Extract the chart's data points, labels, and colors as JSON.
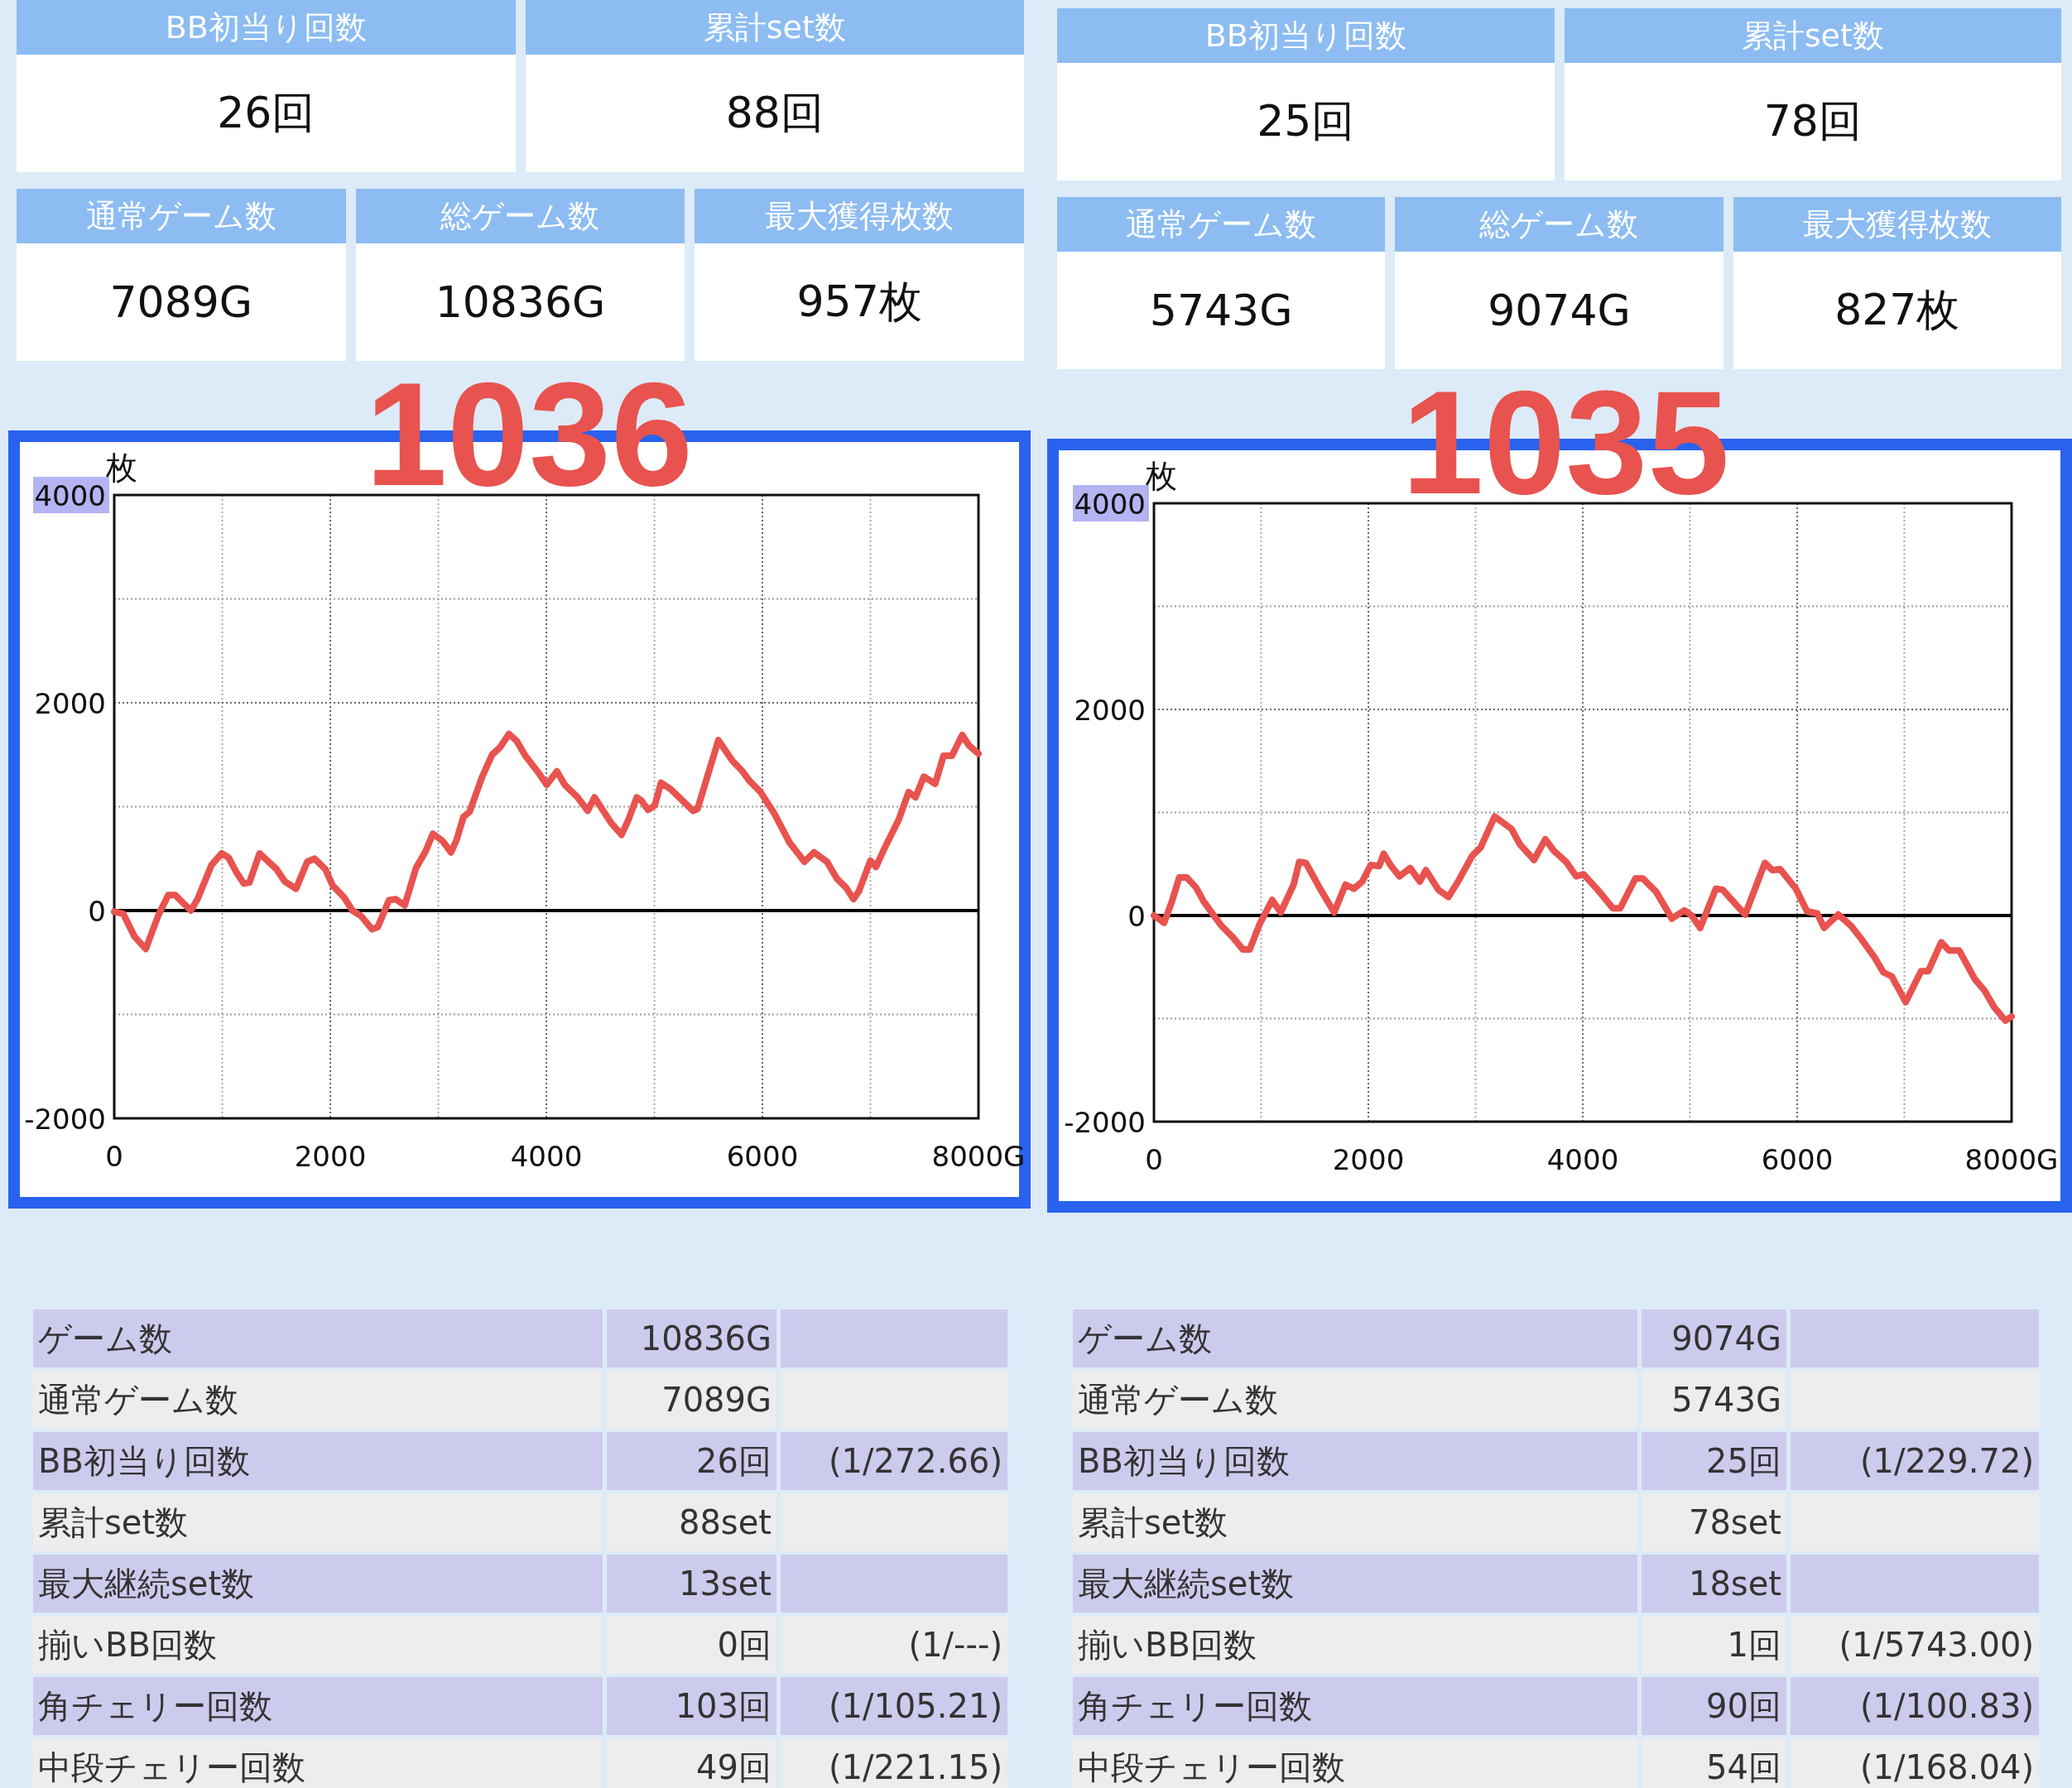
{
  "chart_data": [
    {
      "type": "other",
      "categories": [
        "BB初当り回数",
        "累計set数",
        "通常ゲーム数",
        "総ゲーム数",
        "最大獲得枚数"
      ],
      "value_labels": [
        "26回",
        "88回",
        "7089G",
        "10836G",
        "957枚"
      ]
    },
    {
      "type": "other",
      "categories": [
        "BB初当り回数",
        "累計set数",
        "通常ゲーム数",
        "総ゲーム数",
        "最大獲得枚数"
      ],
      "value_labels": [
        "25回",
        "78回",
        "5743G",
        "9074G",
        "827枚"
      ]
    },
    {
      "type": "line",
      "title": "1036",
      "ylabel": "枚",
      "color": "#e8534f",
      "grid": true,
      "xlim": [
        0,
        8000
      ],
      "ylim": [
        -2000,
        4000
      ],
      "xticks": [
        0,
        {
          "value": 1000,
          "label": null
        },
        2000,
        {
          "value": 3000,
          "label": null
        },
        4000,
        {
          "value": 5000,
          "label": null
        },
        6000,
        {
          "value": 7000,
          "label": null
        },
        {
          "value": 8000,
          "label": "8000G"
        }
      ],
      "yticks": [
        -2000,
        {
          "value": -1000,
          "label": null
        },
        0,
        {
          "value": 1000,
          "label": null
        },
        2000,
        {
          "value": 3000,
          "label": null
        },
        4000
      ],
      "ref_lines": [
        {
          "axis": "y",
          "value": 0,
          "color": "#000000"
        }
      ],
      "x": [
        0,
        83,
        188,
        292,
        406,
        500,
        563,
        709,
        771,
        901,
        995,
        1058,
        1136,
        1199,
        1251,
        1345,
        1501,
        1579,
        1683,
        1787,
        1855,
        1954,
        2022,
        2126,
        2205,
        2283,
        2387,
        2439,
        2543,
        2606,
        2689,
        2794,
        2882,
        2950,
        3039,
        3117,
        3169,
        3232,
        3289,
        3403,
        3497,
        3570,
        3654,
        3727,
        3805,
        3925,
        4003,
        4097,
        4170,
        4289,
        4383,
        4446,
        4602,
        4696,
        4759,
        4837,
        4879,
        4941,
        5003,
        5061,
        5149,
        5358,
        5400,
        5592,
        5723,
        5816,
        5879,
        5983,
        6113,
        6254,
        6389,
        6478,
        6598,
        6687,
        6775,
        6843,
        6895,
        6999,
        7051,
        7130,
        7260,
        7354,
        7417,
        7495,
        7599,
        7677,
        7755,
        7849,
        7912,
        8000
      ],
      "values": [
        -10,
        -30,
        -250,
        -370,
        -50,
        150,
        150,
        0,
        110,
        440,
        550,
        510,
        360,
        260,
        270,
        550,
        400,
        280,
        210,
        470,
        500,
        400,
        240,
        130,
        0,
        -50,
        -180,
        -160,
        100,
        110,
        50,
        410,
        570,
        740,
        670,
        560,
        680,
        900,
        950,
        1280,
        1500,
        1570,
        1700,
        1630,
        1490,
        1330,
        1210,
        1340,
        1210,
        1090,
        960,
        1090,
        840,
        730,
        870,
        1090,
        1060,
        970,
        1010,
        1230,
        1170,
        960,
        980,
        1640,
        1440,
        1340,
        1250,
        1140,
        930,
        650,
        470,
        560,
        470,
        310,
        220,
        110,
        190,
        480,
        420,
        600,
        870,
        1140,
        1090,
        1290,
        1220,
        1490,
        1490,
        1690,
        1590,
        1510
      ]
    },
    {
      "type": "line",
      "title": "1035",
      "ylabel": "枚",
      "color": "#e8534f",
      "grid": true,
      "xlim": [
        0,
        8000
      ],
      "ylim": [
        -2000,
        4000
      ],
      "xticks": [
        0,
        {
          "value": 1000,
          "label": null
        },
        2000,
        {
          "value": 3000,
          "label": null
        },
        4000,
        {
          "value": 5000,
          "label": null
        },
        6000,
        {
          "value": 7000,
          "label": null
        },
        {
          "value": 8000,
          "label": "8000G"
        }
      ],
      "yticks": [
        -2000,
        {
          "value": -1000,
          "label": null
        },
        0,
        {
          "value": 1000,
          "label": null
        },
        2000,
        {
          "value": 3000,
          "label": null
        },
        4000
      ],
      "ref_lines": [
        {
          "axis": "y",
          "value": 0,
          "color": "#000000"
        }
      ],
      "x": [
        0,
        95,
        168,
        236,
        305,
        394,
        462,
        552,
        630,
        735,
        830,
        893,
        987,
        1103,
        1182,
        1303,
        1355,
        1418,
        1550,
        1681,
        1786,
        1865,
        1944,
        2022,
        2101,
        2143,
        2206,
        2290,
        2390,
        2480,
        2537,
        2653,
        2747,
        2837,
        2968,
        3047,
        3178,
        3335,
        3414,
        3545,
        3651,
        3729,
        3845,
        3940,
        4008,
        4139,
        4281,
        4349,
        4491,
        4559,
        4685,
        4832,
        4948,
        5016,
        5095,
        5242,
        5305,
        5452,
        5515,
        5699,
        5768,
        5841,
        5988,
        6093,
        6188,
        6251,
        6383,
        6503,
        6593,
        6724,
        6803,
        6882,
        7013,
        7155,
        7223,
        7344,
        7418,
        7512,
        7659,
        7749,
        7838,
        7943,
        8000
      ],
      "values": [
        0,
        -70,
        140,
        370,
        370,
        270,
        140,
        10,
        -100,
        -210,
        -330,
        -330,
        -80,
        150,
        30,
        300,
        520,
        510,
        260,
        30,
        300,
        260,
        330,
        490,
        480,
        600,
        490,
        380,
        460,
        330,
        440,
        250,
        180,
        330,
        580,
        660,
        960,
        840,
        690,
        540,
        740,
        630,
        520,
        380,
        400,
        250,
        70,
        70,
        360,
        360,
        230,
        -30,
        50,
        0,
        -120,
        260,
        250,
        80,
        10,
        510,
        440,
        450,
        260,
        40,
        20,
        -120,
        10,
        -100,
        -220,
        -410,
        -550,
        -590,
        -840,
        -540,
        -540,
        -260,
        -340,
        -340,
        -620,
        -730,
        -890,
        -1020,
        -980
      ]
    },
    {
      "type": "other",
      "y_categories": [
        "ゲーム数",
        "通常ゲーム数",
        "BB初当り回数",
        "累計set数",
        "最大継続set数",
        "揃いBB回数",
        "角チェリー回数",
        "中段チェリー回数"
      ],
      "cell_labels": [
        [
          "10836G",
          null
        ],
        [
          "7089G",
          null
        ],
        [
          "26回",
          "(1/272.66)"
        ],
        [
          "88set",
          null
        ],
        [
          "13set",
          null
        ],
        [
          "0回",
          "(1/---)"
        ],
        [
          "103回",
          "(1/105.21)"
        ],
        [
          "49回",
          "(1/221.15)"
        ]
      ]
    },
    {
      "type": "other",
      "y_categories": [
        "ゲーム数",
        "通常ゲーム数",
        "BB初当り回数",
        "累計set数",
        "最大継続set数",
        "揃いBB回数",
        "角チェリー回数",
        "中段チェリー回数"
      ],
      "cell_labels": [
        [
          "9074G",
          null
        ],
        [
          "5743G",
          null
        ],
        [
          "25回",
          "(1/229.72)"
        ],
        [
          "78set",
          null
        ],
        [
          "18set",
          null
        ],
        [
          "1回",
          "(1/5743.00)"
        ],
        [
          "90回",
          "(1/100.83)"
        ],
        [
          "54回",
          "(1/168.04)"
        ]
      ]
    }
  ]
}
